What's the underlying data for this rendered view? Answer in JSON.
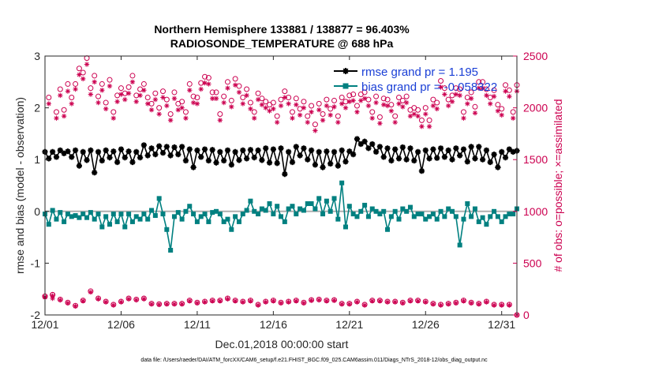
{
  "chart_data": {
    "type": "line",
    "title_line1": "Northern Hemisphere 133881 / 138877 = 96.403%",
    "title_line2": "RADIOSONDE_TEMPERATURE @ 688 hPa",
    "xlabel": "Dec.01,2018 00:00:00 start",
    "ylabel_left": "rmse and bias (model - observation)",
    "ylabel_right": "# of obs: o=possible; ×=assimilated",
    "footer": "data file: /Users/raeder/DAI/ATM_forcXX/CAM6_setup/f.e21.FHIST_BGC.f09_025.CAM6assim.011/Diags_NTrS_2018-12/obs_diag_output.nc",
    "x_ticks": [
      "12/01",
      "12/06",
      "12/11",
      "12/16",
      "12/21",
      "12/26",
      "12/31"
    ],
    "x_tick_days": [
      1,
      6,
      11,
      16,
      21,
      26,
      31
    ],
    "xlim": [
      1,
      32
    ],
    "ylim_left": [
      -2,
      3
    ],
    "y_ticks_left": [
      "-2",
      "-1",
      "0",
      "1",
      "2",
      "3"
    ],
    "ylim_right": [
      0,
      2500
    ],
    "y_ticks_right": [
      "0",
      "500",
      "1000",
      "1500",
      "2000",
      "2500"
    ],
    "legend": [
      {
        "label": "rmse grand pr = 1.195",
        "color": "#000000"
      },
      {
        "label": "bias grand pr = -0.058322",
        "color": "#008080"
      }
    ],
    "colors": {
      "rmse": "#000000",
      "bias": "#008080",
      "obs": "#cc0050",
      "zero_line": "#b0b0b0",
      "legend_text": "#1a3fd6"
    },
    "x_days": [
      1.0,
      1.25,
      1.5,
      1.75,
      2.0,
      2.25,
      2.5,
      2.75,
      3.0,
      3.25,
      3.5,
      3.75,
      4.0,
      4.25,
      4.5,
      4.75,
      5.0,
      5.25,
      5.5,
      5.75,
      6.0,
      6.25,
      6.5,
      6.75,
      7.0,
      7.25,
      7.5,
      7.75,
      8.0,
      8.25,
      8.5,
      8.75,
      9.0,
      9.25,
      9.5,
      9.75,
      10.0,
      10.25,
      10.5,
      10.75,
      11.0,
      11.25,
      11.5,
      11.75,
      12.0,
      12.25,
      12.5,
      12.75,
      13.0,
      13.25,
      13.5,
      13.75,
      14.0,
      14.25,
      14.5,
      14.75,
      15.0,
      15.25,
      15.5,
      15.75,
      16.0,
      16.25,
      16.5,
      16.75,
      17.0,
      17.25,
      17.5,
      17.75,
      18.0,
      18.25,
      18.5,
      18.75,
      19.0,
      19.25,
      19.5,
      19.75,
      20.0,
      20.25,
      20.5,
      20.75,
      21.0,
      21.25,
      21.5,
      21.75,
      22.0,
      22.25,
      22.5,
      22.75,
      23.0,
      23.25,
      23.5,
      23.75,
      24.0,
      24.25,
      24.5,
      24.75,
      25.0,
      25.25,
      25.5,
      25.75,
      26.0,
      26.25,
      26.5,
      26.75,
      27.0,
      27.25,
      27.5,
      27.75,
      28.0,
      28.25,
      28.5,
      28.75,
      29.0,
      29.25,
      29.5,
      29.75,
      30.0,
      30.25,
      30.5,
      30.75,
      31.0,
      31.25,
      31.5,
      31.75,
      32.0
    ],
    "rmse": [
      1.15,
      1.02,
      1.15,
      1.05,
      1.18,
      1.12,
      1.16,
      1.05,
      1.18,
      0.88,
      1.15,
      0.99,
      1.18,
      0.75,
      1.15,
      0.98,
      1.18,
      1.04,
      1.16,
      0.95,
      1.2,
      1.04,
      1.16,
      0.95,
      1.15,
      1.04,
      1.28,
      1.08,
      1.22,
      1.1,
      1.26,
      1.13,
      1.25,
      1.08,
      1.24,
      1.1,
      1.25,
      0.98,
      1.2,
      0.85,
      1.18,
      1.05,
      1.2,
      0.98,
      1.19,
      0.94,
      1.15,
      0.98,
      1.18,
      0.9,
      1.15,
      0.99,
      1.18,
      1.02,
      1.19,
      1.04,
      1.18,
      0.99,
      1.22,
      0.94,
      1.2,
      0.93,
      1.22,
      0.72,
      1.15,
      0.95,
      1.25,
      1.08,
      1.22,
      1.0,
      1.18,
      0.9,
      1.15,
      0.85,
      1.16,
      0.92,
      1.15,
      0.88,
      1.18,
      0.96,
      1.16,
      1.1,
      1.4,
      1.3,
      1.35,
      1.22,
      1.3,
      1.15,
      1.25,
      1.05,
      1.22,
      0.98,
      1.2,
      1.02,
      1.24,
      1.0,
      1.22,
      0.98,
      1.15,
      0.78,
      1.18,
      1.02,
      1.2,
      1.03,
      1.22,
      1.05,
      1.18,
      1.0,
      1.22,
      1.08,
      1.2,
      0.96,
      1.25,
      1.02,
      1.25,
      1.0,
      1.18,
      0.95,
      1.1,
      0.85,
      1.15,
      1.04,
      1.2,
      1.15,
      1.17
    ],
    "bias": [
      -0.05,
      -0.25,
      0.02,
      -0.15,
      -0.02,
      -0.2,
      -0.05,
      -0.1,
      -0.08,
      -0.12,
      -0.05,
      -0.12,
      -0.02,
      -0.15,
      -0.05,
      -0.3,
      -0.1,
      -0.25,
      -0.05,
      -0.2,
      -0.05,
      -0.3,
      -0.05,
      -0.2,
      -0.1,
      -0.15,
      -0.05,
      -0.15,
      0.02,
      -0.08,
      0.25,
      -0.05,
      -0.35,
      -0.75,
      -0.1,
      -0.02,
      -0.15,
      0.0,
      0.1,
      -0.05,
      -0.2,
      -0.1,
      -0.05,
      -0.2,
      -0.02,
      0.0,
      -0.05,
      -0.2,
      -0.15,
      -0.35,
      -0.1,
      -0.2,
      -0.05,
      0.02,
      0.2,
      0.0,
      -0.05,
      0.05,
      0.02,
      0.15,
      -0.05,
      0.1,
      -0.1,
      -0.2,
      0.05,
      0.1,
      -0.05,
      0.05,
      0.02,
      0.15,
      0.15,
      0.05,
      0.25,
      -0.05,
      0.2,
      0.0,
      0.25,
      -0.15,
      0.55,
      -0.3,
      0.1,
      -0.05,
      -0.1,
      0.0,
      0.12,
      -0.1,
      0.05,
      0.0,
      -0.05,
      0.0,
      -0.35,
      -0.1,
      0.0,
      -0.15,
      0.05,
      0.0,
      0.08,
      -0.1,
      -0.05,
      -0.05,
      -0.15,
      -0.1,
      -0.05,
      -0.15,
      0.0,
      -0.1,
      0.05,
      0.0,
      -0.1,
      -0.65,
      -0.15,
      0.15,
      -0.1,
      0.05,
      -0.2,
      -0.12,
      -0.25,
      -0.1,
      0.0,
      -0.1,
      -0.2,
      -0.1,
      -0.05,
      -0.05,
      0.05
    ],
    "obs_possible": [
      180,
      2100,
      195,
      1960,
      2180,
      1980,
      2230,
      2100,
      2230,
      2380,
      2340,
      2480,
      2190,
      2310,
      2110,
      2230,
      2050,
      2270,
      1960,
      2120,
      2190,
      2140,
      2200,
      2310,
      2120,
      2180,
      2230,
      2100,
      2040,
      2140,
      2000,
      2160,
      2080,
      1940,
      2150,
      2040,
      2060,
      1960,
      2230,
      2110,
      2100,
      2240,
      2300,
      2290,
      2150,
      2150,
      1940,
      2110,
      2250,
      2070,
      2280,
      2210,
      2100,
      2180,
      2050,
      1960,
      2140,
      2090,
      2060,
      2030,
      2050,
      1920,
      2080,
      2160,
      2100,
      1960,
      2090,
      1990,
      2060,
      1920,
      2020,
      1840,
      2040,
      1940,
      2080,
      1990,
      2070,
      1920,
      2100,
      2060,
      2120,
      2130,
      2020,
      2130,
      2150,
      2080,
      1960,
      2110,
      1910,
      2090,
      2080,
      2030,
      1920,
      2100,
      2070,
      2110,
      1980,
      2000,
      1980,
      1880,
      2000,
      1880,
      2080,
      2050,
      2260,
      2190,
      2080,
      2120,
      2190,
      2180,
      1960,
      2100,
      2150,
      2010,
      2250,
      2250,
      2180,
      2100,
      2170,
      2030,
      1990,
      2220,
      2170,
      1960,
      2220
    ],
    "obs_assimilated": [
      170,
      2040,
      160,
      1900,
      2120,
      1920,
      2160,
      2040,
      2180,
      2320,
      2280,
      2420,
      2130,
      2250,
      2050,
      2170,
      1990,
      2210,
      1900,
      2060,
      2130,
      2080,
      2140,
      2250,
      2060,
      2120,
      2170,
      2040,
      1980,
      2080,
      1940,
      2100,
      2020,
      1880,
      2090,
      1980,
      2000,
      1900,
      2170,
      2050,
      2040,
      2180,
      2240,
      2230,
      2090,
      2090,
      1880,
      2050,
      2190,
      2010,
      2220,
      2150,
      2040,
      2120,
      1990,
      1900,
      2080,
      2030,
      2000,
      1970,
      1990,
      1860,
      2020,
      2100,
      2040,
      1900,
      2030,
      1930,
      2000,
      1860,
      1960,
      1780,
      1980,
      1880,
      2020,
      1930,
      2010,
      1860,
      2040,
      2000,
      2060,
      2070,
      1960,
      2070,
      2090,
      2020,
      1900,
      2050,
      1850,
      2030,
      2020,
      1970,
      1860,
      2040,
      2010,
      2050,
      1920,
      1940,
      1920,
      1820,
      1940,
      1820,
      2020,
      1990,
      2200,
      2130,
      2020,
      2060,
      2130,
      2120,
      1900,
      2040,
      2090,
      1950,
      2190,
      2190,
      2120,
      2040,
      2110,
      1970,
      1930,
      2160,
      2110,
      1900,
      2160
    ],
    "obs_low_days": [
      1.0,
      1.5,
      2.0,
      2.5,
      3.0,
      3.5,
      4.0,
      4.5,
      5.0,
      5.5,
      6.0,
      6.5,
      7.0,
      7.5,
      8.0,
      8.5,
      9.0,
      9.5,
      10.0,
      10.5,
      11.0,
      11.5,
      12.0,
      12.5,
      13.0,
      13.5,
      14.0,
      14.5,
      15.0,
      15.5,
      16.0,
      16.5,
      17.0,
      17.5,
      18.0,
      18.5,
      19.0,
      19.5,
      20.0,
      20.5,
      21.0,
      21.5,
      22.0,
      22.5,
      23.0,
      23.5,
      24.0,
      24.5,
      25.0,
      25.5,
      26.0,
      26.5,
      27.0,
      27.5,
      28.0,
      28.5,
      29.0,
      29.5,
      30.0,
      30.5,
      31.0,
      31.5,
      32.0
    ],
    "obs_low_possible": [
      180,
      195,
      150,
      120,
      90,
      140,
      230,
      160,
      130,
      100,
      130,
      160,
      150,
      160,
      110,
      105,
      110,
      110,
      110,
      140,
      120,
      130,
      140,
      140,
      160,
      140,
      130,
      140,
      100,
      130,
      140,
      120,
      130,
      140,
      120,
      145,
      150,
      140,
      145,
      110,
      110,
      130,
      100,
      140,
      140,
      130,
      130,
      120,
      140,
      140,
      130,
      110,
      100,
      110,
      120,
      140,
      120,
      110,
      130,
      100,
      100,
      100,
      0
    ],
    "obs_low_assimilated": [
      175,
      185,
      145,
      115,
      85,
      135,
      220,
      155,
      125,
      95,
      125,
      155,
      145,
      155,
      105,
      100,
      105,
      105,
      105,
      135,
      115,
      125,
      135,
      135,
      155,
      135,
      125,
      135,
      95,
      125,
      135,
      115,
      125,
      135,
      115,
      140,
      145,
      135,
      140,
      105,
      105,
      125,
      95,
      135,
      135,
      125,
      125,
      115,
      135,
      135,
      125,
      105,
      95,
      105,
      115,
      135,
      115,
      105,
      125,
      95,
      95,
      95,
      0
    ]
  }
}
